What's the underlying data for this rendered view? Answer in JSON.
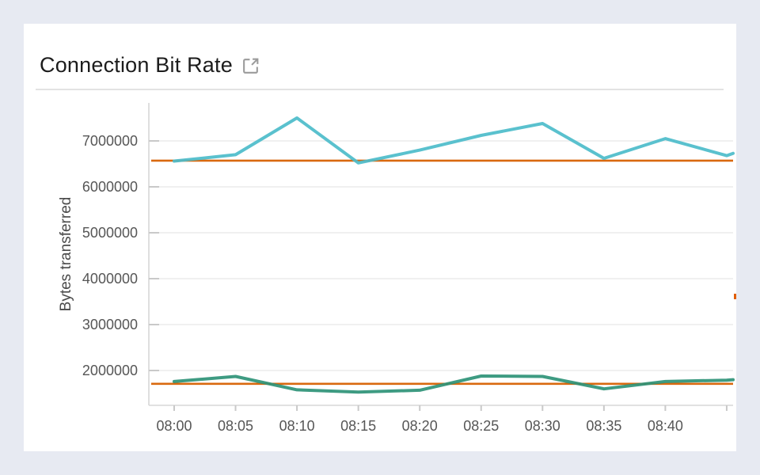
{
  "page": {
    "background_color": "#e7eaf2",
    "card_background": "#ffffff"
  },
  "header": {
    "title": "Connection Bit Rate",
    "external_link_icon": "external-link-icon"
  },
  "chart_data": {
    "type": "line",
    "title": "Connection Bit Rate",
    "xlabel": "",
    "ylabel": "Bytes transferred",
    "legend": "none",
    "grid": true,
    "x_tick_labels": [
      "08:00",
      "08:05",
      "08:10",
      "08:15",
      "08:20",
      "08:25",
      "08:30",
      "08:35",
      "08:40"
    ],
    "times": [
      "08:00",
      "08:05",
      "08:10",
      "08:15",
      "08:20",
      "08:25",
      "08:30",
      "08:35",
      "08:40",
      "08:45"
    ],
    "y_ticks": [
      7000000,
      6000000,
      5000000,
      4000000,
      3000000,
      2000000
    ],
    "y_range_px_note": "plot clipped at right edge after 08:45",
    "series": [
      {
        "name": "teal-series",
        "color": "#4cbcca",
        "values": [
          6560000,
          6700000,
          7500000,
          6520000,
          6800000,
          7120000,
          7380000,
          6620000,
          7050000,
          6680000
        ],
        "edge_value": 6730000
      },
      {
        "name": "green-series",
        "color": "#2e9277",
        "values": [
          1760000,
          1870000,
          1580000,
          1530000,
          1570000,
          1880000,
          1870000,
          1600000,
          1760000,
          1790000
        ],
        "edge_value": 1800000
      }
    ],
    "reference_lines": [
      {
        "name": "upper-threshold",
        "value": 6570000,
        "color": "#d9690f"
      },
      {
        "name": "lower-threshold",
        "value": 1710000,
        "color": "#d9690f"
      }
    ],
    "axis_colors": {
      "axis_line": "#d7d7d7",
      "grid_line": "#ebebeb",
      "tick_mark": "#c9c9c9",
      "tick_text": "#565656"
    }
  }
}
